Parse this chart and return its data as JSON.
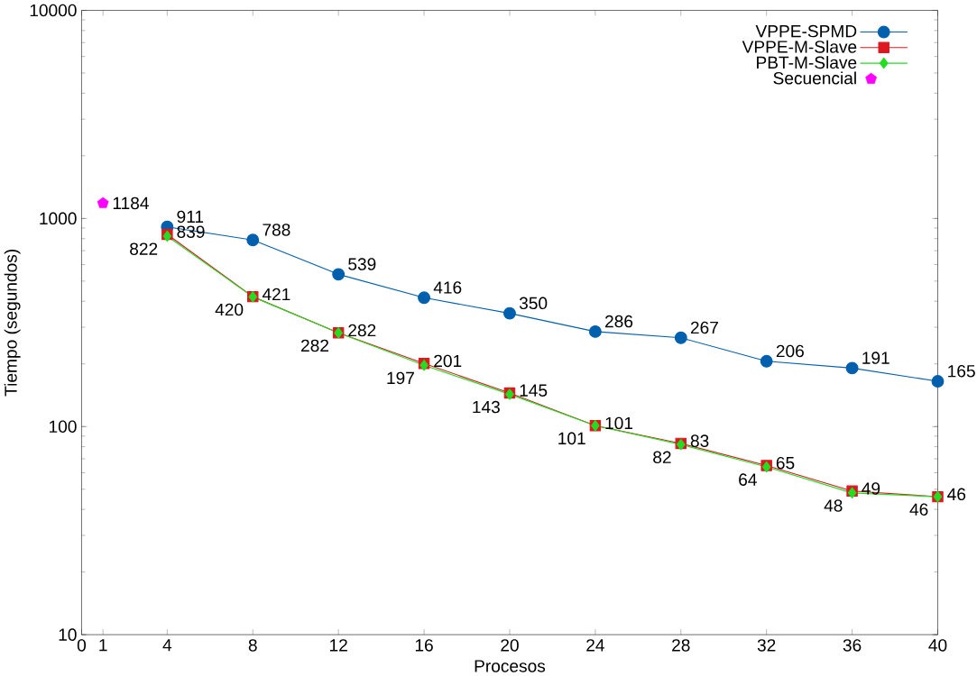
{
  "chart_data": {
    "type": "line",
    "xlabel": "Procesos",
    "ylabel": "Tiempo (segundos)",
    "log": "y",
    "xlim": [
      0,
      40
    ],
    "ylim": [
      10,
      10000
    ],
    "xticks": [
      0,
      1,
      4,
      8,
      12,
      16,
      20,
      24,
      28,
      32,
      36,
      40
    ],
    "yticks": [
      10,
      100,
      1000,
      10000
    ],
    "legend": "top right",
    "data_labels": true,
    "grid": false,
    "series": [
      {
        "name": "VPPE-SPMD",
        "color": "#0060ad",
        "marker": "circle",
        "x": [
          4,
          8,
          12,
          16,
          20,
          24,
          28,
          32,
          36,
          40
        ],
        "values": [
          911,
          788,
          539,
          416,
          350,
          286,
          267,
          206,
          191,
          165
        ]
      },
      {
        "name": "VPPE-M-Slave",
        "color": "#dd181f",
        "marker": "square",
        "x": [
          4,
          8,
          12,
          16,
          20,
          24,
          28,
          32,
          36,
          40
        ],
        "values": [
          839,
          421,
          282,
          201,
          145,
          101,
          83,
          65,
          49,
          46
        ]
      },
      {
        "name": "PBT-M-Slave",
        "color": "#22dd22",
        "marker": "diamond",
        "x": [
          4,
          8,
          12,
          16,
          20,
          24,
          28,
          32,
          36,
          40
        ],
        "values": [
          822,
          420,
          282,
          197,
          143,
          101,
          82,
          64,
          48,
          46
        ]
      },
      {
        "name": "Secuencial",
        "type": "scatter",
        "color": "#ff00ff",
        "x": [
          1
        ],
        "values": [
          1184
        ]
      }
    ]
  }
}
